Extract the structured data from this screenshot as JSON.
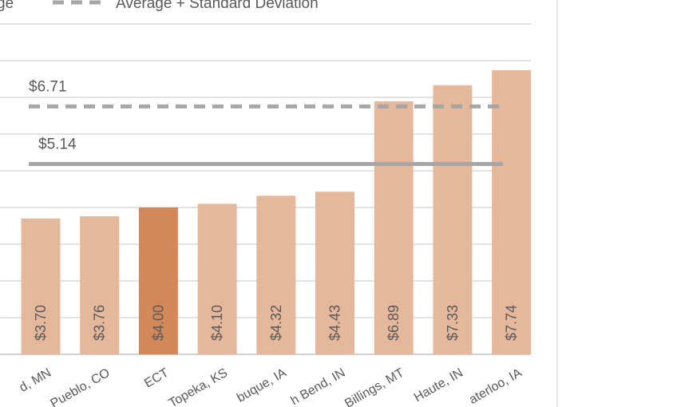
{
  "chart_data": {
    "type": "bar",
    "title": "",
    "xlabel": "",
    "ylabel": "",
    "categories": [
      "Rochester, MN",
      "Pueblo, CO",
      "ECT",
      "Topeka, KS",
      "Dubuque, IA",
      "South Bend, IN",
      "Billings, MT",
      "Terre Haute, IN",
      "Waterloo, IA"
    ],
    "visible_category_text": [
      "d, MN",
      "Pueblo, CO",
      "ECT",
      "Topeka, KS",
      "buque, IA",
      "h Bend, IN",
      "Billings, MT",
      "Haute, IN",
      "aterloo, IA"
    ],
    "values": [
      3.7,
      3.76,
      4.0,
      4.1,
      4.32,
      4.43,
      6.89,
      7.33,
      7.74
    ],
    "value_labels": [
      "$3.70",
      "$3.76",
      "$4.00",
      "$4.10",
      "$4.32",
      "$4.43",
      "$6.89",
      "$7.33",
      "$7.74"
    ],
    "highlight_category": "ECT",
    "ylim": [
      0,
      9
    ],
    "grid": true,
    "reference_lines": [
      {
        "value": 5.14,
        "label": "$5.14",
        "style": "solid",
        "color": "#a6a6a6"
      },
      {
        "value": 6.71,
        "label": "$6.71",
        "style": "dashed",
        "color": "#a6a6a6"
      }
    ],
    "legend": {
      "placement": "top",
      "entries": [
        {
          "label": "ge",
          "style": "solid"
        },
        {
          "label": "Average + Standard Deviation",
          "style": "dashed"
        }
      ]
    },
    "colors": {
      "bar": "#e5b89c",
      "highlight": "#d3885a",
      "grid": "#d9d9d9",
      "axis": "#bfbfbf",
      "text": "#595959"
    }
  }
}
